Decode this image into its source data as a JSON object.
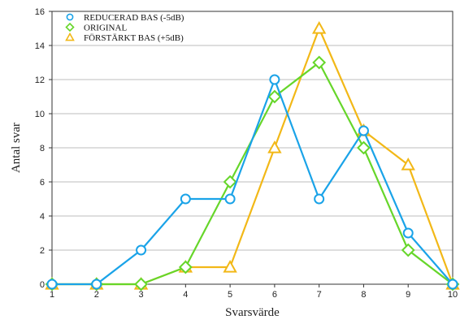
{
  "chart_data": {
    "type": "line",
    "x": [
      1,
      2,
      3,
      4,
      5,
      6,
      7,
      8,
      9,
      10
    ],
    "xlabel": "Svarsvärde",
    "ylabel": "Antal svar",
    "xlim": [
      1,
      10
    ],
    "ylim": [
      0,
      16
    ],
    "x_ticks": [
      "1",
      "2",
      "3",
      "4",
      "5",
      "6",
      "7",
      "8",
      "9",
      "10"
    ],
    "y_ticks": [
      "0",
      "2",
      "4",
      "6",
      "8",
      "10",
      "12",
      "14",
      "16"
    ],
    "grid": "horizontal",
    "legend_position": "top-left",
    "series": [
      {
        "name": "REDUCERAD BAS (-5dB)",
        "color": "#1aa3e8",
        "marker": "circle",
        "values": [
          0,
          0,
          2,
          5,
          5,
          12,
          5,
          9,
          3,
          0
        ]
      },
      {
        "name": "ORIGINAL",
        "color": "#66d62a",
        "marker": "diamond",
        "values": [
          0,
          0,
          0,
          1,
          6,
          11,
          13,
          8,
          2,
          0
        ]
      },
      {
        "name": "FÖRSTÄRKT BAS (+5dB)",
        "color": "#f2b817",
        "marker": "triangle",
        "values": [
          0,
          0,
          0,
          1,
          1,
          8,
          15,
          9,
          7,
          0
        ]
      }
    ]
  }
}
